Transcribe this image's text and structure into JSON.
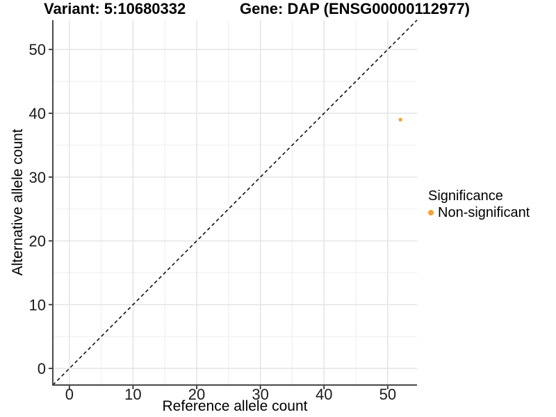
{
  "chart_data": {
    "type": "scatter",
    "title_left": "Variant: 5:10680332",
    "title_right": "Gene: DAP (ENSG00000112977)",
    "xlabel": "Reference allele count",
    "ylabel": "Alternative allele count",
    "xlim": [
      -2.6,
      54.6
    ],
    "ylim": [
      -2.6,
      54.6
    ],
    "xticks": [
      0,
      10,
      20,
      30,
      40,
      50
    ],
    "yticks": [
      0,
      10,
      20,
      30,
      40,
      50
    ],
    "xminor": [
      5,
      15,
      25,
      35,
      45
    ],
    "yminor": [
      5,
      15,
      25,
      35,
      45
    ],
    "grid": {
      "major_color": "#e4e4e4",
      "minor_color": "#f0f0f0"
    },
    "identity_line": {
      "style": "dashed",
      "color": "#000000",
      "slope": 1,
      "intercept": 0
    },
    "series": [
      {
        "name": "Non-significant",
        "color": "#F9A135",
        "points": [
          {
            "x": 52,
            "y": 39
          }
        ]
      }
    ],
    "legend": {
      "title": "Significance",
      "position": "right",
      "entries": [
        {
          "label": "Non-significant",
          "color": "#F9A135"
        }
      ]
    },
    "axis_color": "#474747",
    "tick_color": "#333333",
    "text_color": "#1a1a1a"
  }
}
